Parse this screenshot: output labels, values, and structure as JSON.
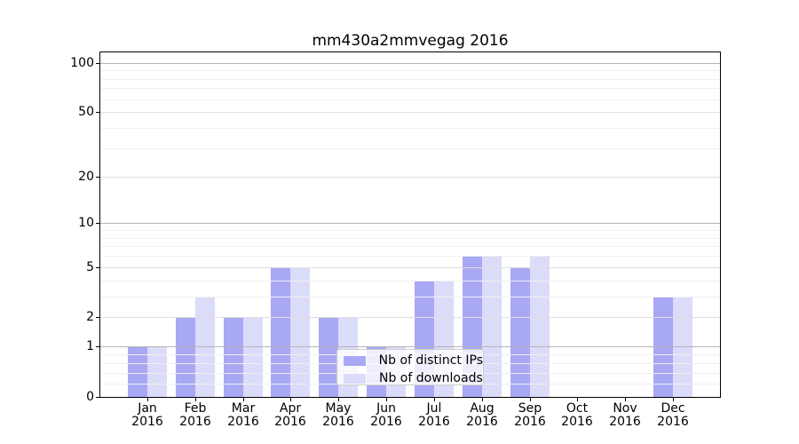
{
  "chart_data": {
    "type": "bar",
    "title": "mm430a2mmvegag 2016",
    "categories": [
      {
        "month": "Jan",
        "year": "2016"
      },
      {
        "month": "Feb",
        "year": "2016"
      },
      {
        "month": "Mar",
        "year": "2016"
      },
      {
        "month": "Apr",
        "year": "2016"
      },
      {
        "month": "May",
        "year": "2016"
      },
      {
        "month": "Jun",
        "year": "2016"
      },
      {
        "month": "Jul",
        "year": "2016"
      },
      {
        "month": "Aug",
        "year": "2016"
      },
      {
        "month": "Sep",
        "year": "2016"
      },
      {
        "month": "Oct",
        "year": "2016"
      },
      {
        "month": "Nov",
        "year": "2016"
      },
      {
        "month": "Dec",
        "year": "2016"
      }
    ],
    "series": [
      {
        "name": "Nb of distinct IPs",
        "color": "#a8a8f5",
        "values": [
          1,
          2,
          2,
          5,
          2,
          1,
          4,
          6,
          5,
          0,
          0,
          3
        ]
      },
      {
        "name": "Nb of downloads",
        "color": "#dbdbfa",
        "values": [
          1,
          3,
          2,
          5,
          2,
          1,
          4,
          6,
          6,
          0,
          0,
          3
        ]
      }
    ],
    "yscale": "log1p",
    "ylim": [
      0,
      115.6
    ],
    "y_ticks": [
      0,
      1,
      2,
      5,
      10,
      20,
      50,
      100
    ],
    "y_grid_strong": [
      1,
      10,
      100
    ],
    "y_grid_medium": [
      2,
      5,
      20,
      50
    ],
    "y_grid_minor": [
      0.2,
      0.4,
      0.6,
      0.8,
      3,
      4,
      6,
      7,
      8,
      9,
      30,
      40,
      60,
      70,
      80,
      90
    ],
    "grid": true,
    "legend_location": "lower center",
    "colors": {
      "grid_strong": "#b5b5b5",
      "grid_medium": "#dedede",
      "grid_minor": "#f0f0f0",
      "spine": "#000000",
      "text": "#000000",
      "legend_border": "#cccccc"
    }
  }
}
